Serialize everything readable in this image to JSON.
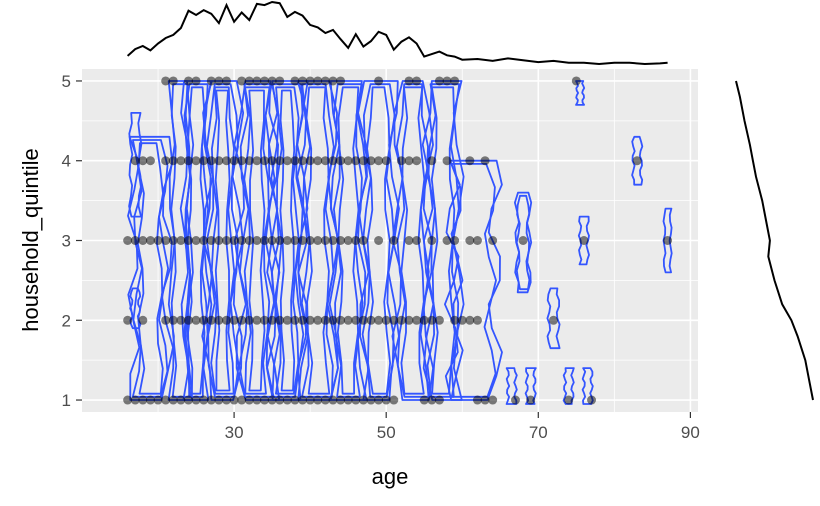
{
  "chart_data": {
    "type": "scatter",
    "title": "",
    "xlabel": "age",
    "ylabel": "household_quintile",
    "xlim": [
      10,
      91
    ],
    "ylim": [
      0.85,
      5.15
    ],
    "xticks": [
      30,
      50,
      70,
      90
    ],
    "yticks": [
      1,
      2,
      3,
      4,
      5
    ],
    "grid": true,
    "panel_background": "#ebebeb",
    "grid_color": "#ffffff",
    "point_color": "#000000",
    "point_alpha": 0.5,
    "contour_color": "#3355ff",
    "marginal_color": "#000000",
    "points": [
      {
        "x": 16,
        "y": 1
      },
      {
        "x": 17,
        "y": 1
      },
      {
        "x": 18,
        "y": 1
      },
      {
        "x": 19,
        "y": 1
      },
      {
        "x": 20,
        "y": 1
      },
      {
        "x": 21,
        "y": 1
      },
      {
        "x": 22,
        "y": 1
      },
      {
        "x": 23,
        "y": 1
      },
      {
        "x": 24,
        "y": 1
      },
      {
        "x": 25,
        "y": 1
      },
      {
        "x": 26,
        "y": 1
      },
      {
        "x": 27,
        "y": 1
      },
      {
        "x": 28,
        "y": 1
      },
      {
        "x": 29,
        "y": 1
      },
      {
        "x": 30,
        "y": 1
      },
      {
        "x": 31,
        "y": 1
      },
      {
        "x": 32,
        "y": 1
      },
      {
        "x": 33,
        "y": 1
      },
      {
        "x": 34,
        "y": 1
      },
      {
        "x": 35,
        "y": 1
      },
      {
        "x": 36,
        "y": 1
      },
      {
        "x": 37,
        "y": 1
      },
      {
        "x": 38,
        "y": 1
      },
      {
        "x": 39,
        "y": 1
      },
      {
        "x": 40,
        "y": 1
      },
      {
        "x": 41,
        "y": 1
      },
      {
        "x": 42,
        "y": 1
      },
      {
        "x": 43,
        "y": 1
      },
      {
        "x": 44,
        "y": 1
      },
      {
        "x": 45,
        "y": 1
      },
      {
        "x": 46,
        "y": 1
      },
      {
        "x": 47,
        "y": 1
      },
      {
        "x": 48,
        "y": 1
      },
      {
        "x": 49,
        "y": 1
      },
      {
        "x": 50,
        "y": 1
      },
      {
        "x": 51,
        "y": 1
      },
      {
        "x": 55,
        "y": 1
      },
      {
        "x": 56,
        "y": 1
      },
      {
        "x": 57,
        "y": 1
      },
      {
        "x": 62,
        "y": 1
      },
      {
        "x": 63,
        "y": 1
      },
      {
        "x": 64,
        "y": 1
      },
      {
        "x": 67,
        "y": 1
      },
      {
        "x": 69,
        "y": 1
      },
      {
        "x": 74,
        "y": 1
      },
      {
        "x": 77,
        "y": 1
      },
      {
        "x": 16,
        "y": 2
      },
      {
        "x": 18,
        "y": 2
      },
      {
        "x": 21,
        "y": 2
      },
      {
        "x": 22,
        "y": 2
      },
      {
        "x": 23,
        "y": 2
      },
      {
        "x": 24,
        "y": 2
      },
      {
        "x": 25,
        "y": 2
      },
      {
        "x": 26,
        "y": 2
      },
      {
        "x": 27,
        "y": 2
      },
      {
        "x": 28,
        "y": 2
      },
      {
        "x": 29,
        "y": 2
      },
      {
        "x": 30,
        "y": 2
      },
      {
        "x": 31,
        "y": 2
      },
      {
        "x": 32,
        "y": 2
      },
      {
        "x": 33,
        "y": 2
      },
      {
        "x": 34,
        "y": 2
      },
      {
        "x": 35,
        "y": 2
      },
      {
        "x": 36,
        "y": 2
      },
      {
        "x": 37,
        "y": 2
      },
      {
        "x": 38,
        "y": 2
      },
      {
        "x": 39,
        "y": 2
      },
      {
        "x": 40,
        "y": 2
      },
      {
        "x": 41,
        "y": 2
      },
      {
        "x": 42,
        "y": 2
      },
      {
        "x": 43,
        "y": 2
      },
      {
        "x": 44,
        "y": 2
      },
      {
        "x": 45,
        "y": 2
      },
      {
        "x": 46,
        "y": 2
      },
      {
        "x": 47,
        "y": 2
      },
      {
        "x": 48,
        "y": 2
      },
      {
        "x": 49,
        "y": 2
      },
      {
        "x": 50,
        "y": 2
      },
      {
        "x": 51,
        "y": 2
      },
      {
        "x": 52,
        "y": 2
      },
      {
        "x": 53,
        "y": 2
      },
      {
        "x": 54,
        "y": 2
      },
      {
        "x": 55,
        "y": 2
      },
      {
        "x": 56,
        "y": 2
      },
      {
        "x": 57,
        "y": 2
      },
      {
        "x": 59,
        "y": 2
      },
      {
        "x": 60,
        "y": 2
      },
      {
        "x": 61,
        "y": 2
      },
      {
        "x": 62,
        "y": 2
      },
      {
        "x": 72,
        "y": 2
      },
      {
        "x": 16,
        "y": 3
      },
      {
        "x": 17,
        "y": 3
      },
      {
        "x": 18,
        "y": 3
      },
      {
        "x": 19,
        "y": 3
      },
      {
        "x": 20,
        "y": 3
      },
      {
        "x": 21,
        "y": 3
      },
      {
        "x": 22,
        "y": 3
      },
      {
        "x": 23,
        "y": 3
      },
      {
        "x": 24,
        "y": 3
      },
      {
        "x": 25,
        "y": 3
      },
      {
        "x": 26,
        "y": 3
      },
      {
        "x": 27,
        "y": 3
      },
      {
        "x": 28,
        "y": 3
      },
      {
        "x": 29,
        "y": 3
      },
      {
        "x": 30,
        "y": 3
      },
      {
        "x": 31,
        "y": 3
      },
      {
        "x": 32,
        "y": 3
      },
      {
        "x": 33,
        "y": 3
      },
      {
        "x": 34,
        "y": 3
      },
      {
        "x": 35,
        "y": 3
      },
      {
        "x": 36,
        "y": 3
      },
      {
        "x": 37,
        "y": 3
      },
      {
        "x": 38,
        "y": 3
      },
      {
        "x": 39,
        "y": 3
      },
      {
        "x": 40,
        "y": 3
      },
      {
        "x": 41,
        "y": 3
      },
      {
        "x": 42,
        "y": 3
      },
      {
        "x": 43,
        "y": 3
      },
      {
        "x": 44,
        "y": 3
      },
      {
        "x": 45,
        "y": 3
      },
      {
        "x": 46,
        "y": 3
      },
      {
        "x": 47,
        "y": 3
      },
      {
        "x": 49,
        "y": 3
      },
      {
        "x": 51,
        "y": 3
      },
      {
        "x": 53,
        "y": 3
      },
      {
        "x": 54,
        "y": 3
      },
      {
        "x": 56,
        "y": 3
      },
      {
        "x": 58,
        "y": 3
      },
      {
        "x": 59,
        "y": 3
      },
      {
        "x": 61,
        "y": 3
      },
      {
        "x": 62,
        "y": 3
      },
      {
        "x": 64,
        "y": 3
      },
      {
        "x": 68,
        "y": 3
      },
      {
        "x": 76,
        "y": 3
      },
      {
        "x": 87,
        "y": 3
      },
      {
        "x": 17,
        "y": 4
      },
      {
        "x": 18,
        "y": 4
      },
      {
        "x": 19,
        "y": 4
      },
      {
        "x": 21,
        "y": 4
      },
      {
        "x": 22,
        "y": 4
      },
      {
        "x": 23,
        "y": 4
      },
      {
        "x": 24,
        "y": 4
      },
      {
        "x": 25,
        "y": 4
      },
      {
        "x": 26,
        "y": 4
      },
      {
        "x": 27,
        "y": 4
      },
      {
        "x": 28,
        "y": 4
      },
      {
        "x": 29,
        "y": 4
      },
      {
        "x": 30,
        "y": 4
      },
      {
        "x": 31,
        "y": 4
      },
      {
        "x": 32,
        "y": 4
      },
      {
        "x": 33,
        "y": 4
      },
      {
        "x": 34,
        "y": 4
      },
      {
        "x": 35,
        "y": 4
      },
      {
        "x": 36,
        "y": 4
      },
      {
        "x": 37,
        "y": 4
      },
      {
        "x": 38,
        "y": 4
      },
      {
        "x": 39,
        "y": 4
      },
      {
        "x": 40,
        "y": 4
      },
      {
        "x": 41,
        "y": 4
      },
      {
        "x": 42,
        "y": 4
      },
      {
        "x": 43,
        "y": 4
      },
      {
        "x": 44,
        "y": 4
      },
      {
        "x": 45,
        "y": 4
      },
      {
        "x": 46,
        "y": 4
      },
      {
        "x": 47,
        "y": 4
      },
      {
        "x": 48,
        "y": 4
      },
      {
        "x": 49,
        "y": 4
      },
      {
        "x": 50,
        "y": 4
      },
      {
        "x": 52,
        "y": 4
      },
      {
        "x": 53,
        "y": 4
      },
      {
        "x": 54,
        "y": 4
      },
      {
        "x": 56,
        "y": 4
      },
      {
        "x": 58,
        "y": 4
      },
      {
        "x": 61,
        "y": 4
      },
      {
        "x": 63,
        "y": 4
      },
      {
        "x": 83,
        "y": 4
      },
      {
        "x": 21,
        "y": 5
      },
      {
        "x": 22,
        "y": 5
      },
      {
        "x": 24,
        "y": 5
      },
      {
        "x": 25,
        "y": 5
      },
      {
        "x": 27,
        "y": 5
      },
      {
        "x": 28,
        "y": 5
      },
      {
        "x": 29,
        "y": 5
      },
      {
        "x": 31,
        "y": 5
      },
      {
        "x": 32,
        "y": 5
      },
      {
        "x": 33,
        "y": 5
      },
      {
        "x": 34,
        "y": 5
      },
      {
        "x": 35,
        "y": 5
      },
      {
        "x": 36,
        "y": 5
      },
      {
        "x": 38,
        "y": 5
      },
      {
        "x": 39,
        "y": 5
      },
      {
        "x": 40,
        "y": 5
      },
      {
        "x": 41,
        "y": 5
      },
      {
        "x": 42,
        "y": 5
      },
      {
        "x": 43,
        "y": 5
      },
      {
        "x": 44,
        "y": 5
      },
      {
        "x": 49,
        "y": 5
      },
      {
        "x": 53,
        "y": 5
      },
      {
        "x": 54,
        "y": 5
      },
      {
        "x": 57,
        "y": 5
      },
      {
        "x": 58,
        "y": 5
      },
      {
        "x": 59,
        "y": 5
      },
      {
        "x": 75,
        "y": 5
      }
    ],
    "marginal_x_density": {
      "x": [
        16,
        17,
        18,
        19,
        20,
        21,
        22,
        23,
        24,
        25,
        26,
        27,
        28,
        29,
        30,
        31,
        32,
        33,
        34,
        35,
        36,
        37,
        38,
        39,
        40,
        41,
        42,
        43,
        44,
        45,
        46,
        47,
        48,
        49,
        50,
        51,
        52,
        53,
        54,
        55,
        56,
        57,
        58,
        59,
        60,
        62,
        64,
        66,
        68,
        70,
        72,
        74,
        76,
        78,
        80,
        82,
        84,
        86,
        87
      ],
      "density": [
        0.13,
        0.24,
        0.29,
        0.22,
        0.33,
        0.42,
        0.47,
        0.58,
        0.86,
        0.79,
        0.87,
        0.81,
        0.66,
        0.95,
        0.68,
        0.83,
        0.71,
        0.97,
        0.95,
        1.0,
        0.98,
        0.76,
        0.84,
        0.78,
        0.63,
        0.59,
        0.5,
        0.55,
        0.4,
        0.26,
        0.48,
        0.28,
        0.37,
        0.52,
        0.47,
        0.23,
        0.36,
        0.43,
        0.33,
        0.12,
        0.16,
        0.2,
        0.14,
        0.12,
        0.07,
        0.08,
        0.05,
        0.09,
        0.06,
        0.03,
        0.05,
        0.02,
        0.02,
        0.0,
        0.02,
        0.02,
        0.0,
        0.01,
        0.02
      ]
    },
    "marginal_y_density": {
      "y": [
        1.0,
        1.2,
        1.5,
        1.8,
        2.0,
        2.2,
        2.5,
        2.8,
        3.0,
        3.2,
        3.5,
        3.8,
        4.0,
        4.2,
        4.5,
        4.8,
        5.0
      ],
      "density": [
        1.0,
        0.96,
        0.9,
        0.8,
        0.72,
        0.6,
        0.5,
        0.42,
        0.44,
        0.4,
        0.34,
        0.26,
        0.22,
        0.18,
        0.11,
        0.05,
        0.0
      ]
    },
    "contour_groups": [
      {
        "cx": 17,
        "y_span": [
          1.9,
          2.4
        ],
        "half_width": 0.5,
        "rings": 1
      },
      {
        "cx": 17,
        "y_span": [
          3.3,
          4.6
        ],
        "half_width": 0.6,
        "rings": 1
      },
      {
        "cx": 19,
        "y_span": [
          1.0,
          4.3
        ],
        "half_width": 2.2,
        "rings": 3
      },
      {
        "cx": 23,
        "y_span": [
          1.0,
          5.0
        ],
        "half_width": 1.2,
        "rings": 2
      },
      {
        "cx": 25,
        "y_span": [
          1.0,
          5.0
        ],
        "half_width": 1.5,
        "rings": 3
      },
      {
        "cx": 28.5,
        "y_span": [
          1.0,
          5.0
        ],
        "half_width": 2.0,
        "rings": 4
      },
      {
        "cx": 33,
        "y_span": [
          1.0,
          5.0
        ],
        "half_width": 2.2,
        "rings": 4
      },
      {
        "cx": 37,
        "y_span": [
          1.0,
          5.0
        ],
        "half_width": 2.0,
        "rings": 4
      },
      {
        "cx": 41,
        "y_span": [
          1.0,
          5.0
        ],
        "half_width": 2.0,
        "rings": 3
      },
      {
        "cx": 45,
        "y_span": [
          1.0,
          5.0
        ],
        "half_width": 1.8,
        "rings": 3
      },
      {
        "cx": 49,
        "y_span": [
          1.0,
          5.0
        ],
        "half_width": 2.0,
        "rings": 3
      },
      {
        "cx": 53.5,
        "y_span": [
          1.0,
          5.0
        ],
        "half_width": 2.0,
        "rings": 3
      },
      {
        "cx": 57.5,
        "y_span": [
          1.0,
          5.0
        ],
        "half_width": 2.0,
        "rings": 3
      },
      {
        "cx": 61.5,
        "y_span": [
          1.0,
          4.0
        ],
        "half_width": 2.8,
        "rings": 2
      },
      {
        "cx": 66.5,
        "y_span": [
          0.95,
          1.4
        ],
        "half_width": 0.5,
        "rings": 1
      },
      {
        "cx": 69,
        "y_span": [
          0.95,
          1.4
        ],
        "half_width": 0.5,
        "rings": 1
      },
      {
        "cx": 68,
        "y_span": [
          2.35,
          3.6
        ],
        "half_width": 0.8,
        "rings": 2
      },
      {
        "cx": 72,
        "y_span": [
          1.65,
          2.4
        ],
        "half_width": 0.6,
        "rings": 1
      },
      {
        "cx": 74,
        "y_span": [
          0.95,
          1.4
        ],
        "half_width": 0.5,
        "rings": 1
      },
      {
        "cx": 76.5,
        "y_span": [
          0.95,
          1.4
        ],
        "half_width": 0.5,
        "rings": 1
      },
      {
        "cx": 75.5,
        "y_span": [
          4.7,
          5.0
        ],
        "half_width": 0.4,
        "rings": 1
      },
      {
        "cx": 76,
        "y_span": [
          2.7,
          3.3
        ],
        "half_width": 0.5,
        "rings": 1
      },
      {
        "cx": 83,
        "y_span": [
          3.7,
          4.3
        ],
        "half_width": 0.5,
        "rings": 1
      },
      {
        "cx": 87,
        "y_span": [
          2.6,
          3.4
        ],
        "half_width": 0.4,
        "rings": 1
      }
    ]
  }
}
